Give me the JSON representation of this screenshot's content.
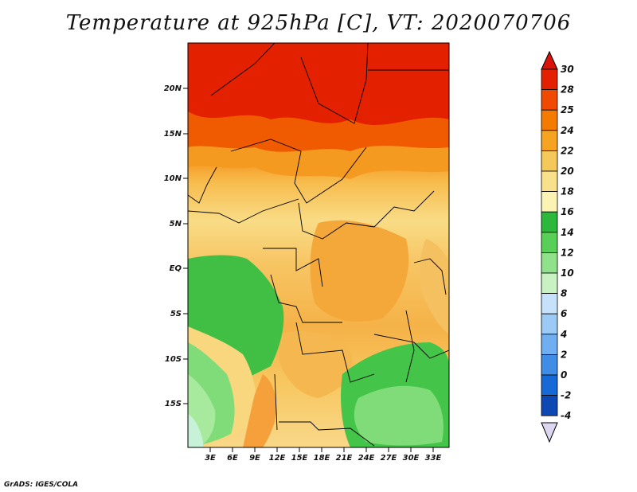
{
  "title": "Temperature at 925hPa [C], VT: 2020070706",
  "credit": "GrADS: IGES/COLA",
  "map": {
    "lat_labels": [
      "20N",
      "15N",
      "10N",
      "5N",
      "EQ",
      "5S",
      "10S",
      "15S"
    ],
    "lon_labels": [
      "3E",
      "6E",
      "9E",
      "12E",
      "15E",
      "18E",
      "21E",
      "24E",
      "27E",
      "30E",
      "33E"
    ]
  },
  "colorbar": {
    "labels": [
      "30",
      "28",
      "25",
      "24",
      "22",
      "20",
      "18",
      "16",
      "14",
      "12",
      "10",
      "8",
      "6",
      "4",
      "2",
      "0",
      "-2",
      "-4"
    ],
    "colors": [
      "#e32000",
      "#f04a00",
      "#f57b00",
      "#f5a320",
      "#f5c85a",
      "#f9e08a",
      "#fbf3b4",
      "#2cb83a",
      "#58d058",
      "#8fe28a",
      "#c8f2c2",
      "#c6e2fb",
      "#9ccaf7",
      "#6faef0",
      "#3f8de7",
      "#1769d8",
      "#0c47b4",
      "#06207a",
      "#dcd6f0"
    ],
    "top_color": "#d9120a",
    "bottom_color": "#dcd6f0"
  }
}
